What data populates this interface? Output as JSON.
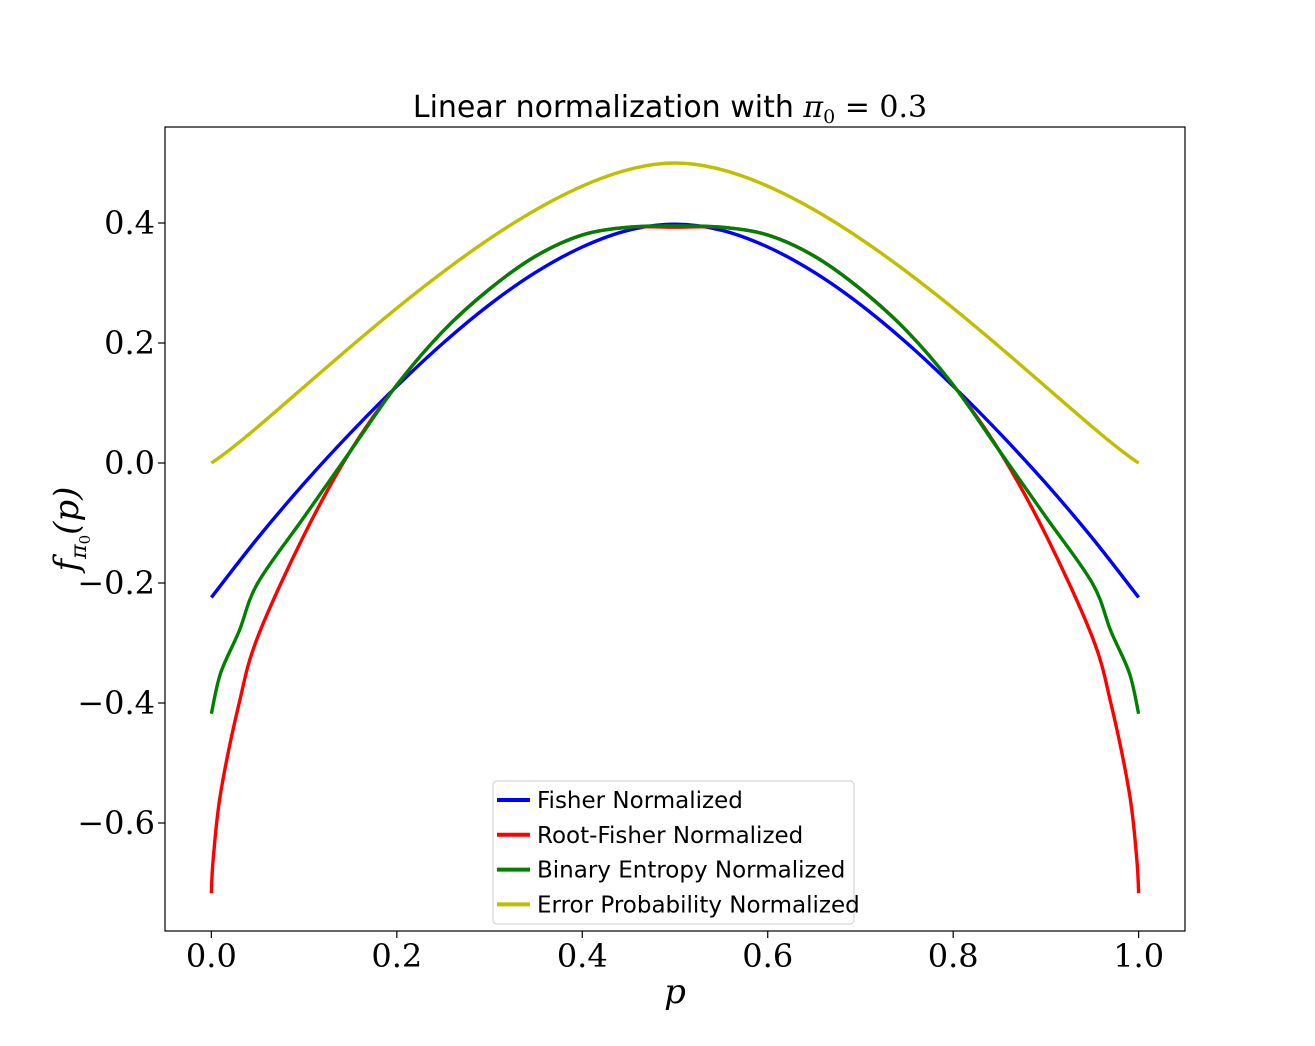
{
  "chart_data": {
    "type": "line",
    "title": {
      "prefix": "Linear normalization with ",
      "symbol": "π",
      "subscript": "0",
      "suffix": " = 0.3"
    },
    "xlabel": "p",
    "ylabel": {
      "f": "f",
      "sub_symbol": "π",
      "sub_index": "0",
      "arg": "(p)"
    },
    "xlim": [
      -0.05,
      1.05
    ],
    "ylim": [
      -0.78,
      0.56
    ],
    "x_ticks": [
      0.0,
      0.2,
      0.4,
      0.6,
      0.8,
      1.0
    ],
    "x_tick_labels": [
      "0.0",
      "0.2",
      "0.4",
      "0.6",
      "0.8",
      "1.0"
    ],
    "y_ticks": [
      0.4,
      0.2,
      0.0,
      -0.2,
      -0.4,
      -0.6
    ],
    "y_tick_labels": [
      "0.4",
      "0.2",
      "0.0",
      "−0.2",
      "−0.4",
      "−0.6"
    ],
    "grid": false,
    "legend_position": "lower-center",
    "series": [
      {
        "name": "Fisher Normalized",
        "color": "#0000ff",
        "x": [
          0.0,
          0.05,
          0.1,
          0.15,
          0.2,
          0.25,
          0.3,
          0.35,
          0.4,
          0.45,
          0.5,
          0.55,
          0.6,
          0.65,
          0.7,
          0.75,
          0.8,
          0.85,
          0.9,
          0.95,
          1.0
        ],
        "y": [
          -0.224,
          -0.125,
          -0.034,
          0.05,
          0.128,
          0.2,
          0.264,
          0.318,
          0.36,
          0.388,
          0.398,
          0.388,
          0.36,
          0.318,
          0.264,
          0.2,
          0.128,
          0.05,
          -0.034,
          -0.125,
          -0.224
        ]
      },
      {
        "name": "Root-Fisher Normalized",
        "color": "#ff0000",
        "x": [
          0.0,
          0.002,
          0.01,
          0.03,
          0.05,
          0.1,
          0.15,
          0.2,
          0.25,
          0.3,
          0.35,
          0.4,
          0.45,
          0.5,
          0.55,
          0.6,
          0.65,
          0.7,
          0.75,
          0.8,
          0.85,
          0.9,
          0.95,
          0.97,
          0.99,
          0.998,
          1.0
        ],
        "y": [
          -0.717,
          -0.66,
          -0.55,
          -0.4,
          -0.29,
          -0.12,
          0.02,
          0.13,
          0.22,
          0.29,
          0.345,
          0.38,
          0.393,
          0.393,
          0.393,
          0.38,
          0.345,
          0.29,
          0.22,
          0.13,
          0.02,
          -0.12,
          -0.29,
          -0.4,
          -0.55,
          -0.66,
          -0.717
        ]
      },
      {
        "name": "Binary Entropy Normalized",
        "color": "#008000",
        "x": [
          0.0,
          0.01,
          0.03,
          0.05,
          0.1,
          0.15,
          0.2,
          0.25,
          0.3,
          0.35,
          0.4,
          0.45,
          0.5,
          0.55,
          0.6,
          0.65,
          0.7,
          0.75,
          0.8,
          0.85,
          0.9,
          0.95,
          0.97,
          0.99,
          1.0
        ],
        "y": [
          -0.418,
          -0.35,
          -0.28,
          -0.2,
          -0.09,
          0.02,
          0.13,
          0.22,
          0.29,
          0.345,
          0.38,
          0.393,
          0.395,
          0.393,
          0.38,
          0.345,
          0.29,
          0.22,
          0.13,
          0.02,
          -0.09,
          -0.2,
          -0.28,
          -0.35,
          -0.418
        ]
      },
      {
        "name": "Error Probability Normalized",
        "color": "#bfbf00",
        "x": [
          0.0,
          0.5,
          1.0
        ],
        "y": [
          0.0,
          0.5,
          0.0
        ]
      }
    ]
  }
}
